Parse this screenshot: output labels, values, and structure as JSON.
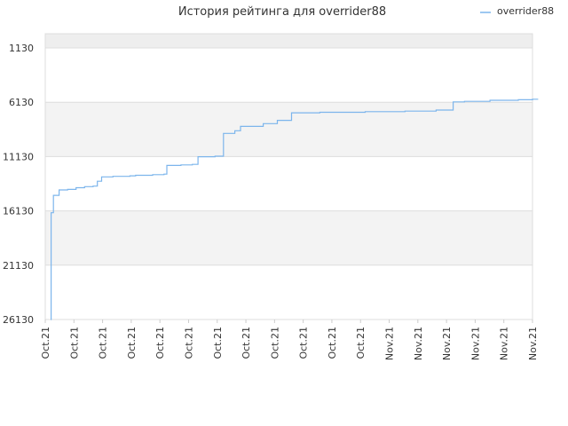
{
  "chart_data": {
    "type": "line",
    "title": "История рейтинга для overrider88",
    "legend": {
      "position": "top-right",
      "label": "overrider88"
    },
    "y_axis": {
      "reversed": true,
      "ylim": [
        1130,
        26130
      ],
      "ticks": [
        "1130",
        "6130",
        "11130",
        "16130",
        "21130",
        "26130"
      ]
    },
    "x_axis": {
      "ticks": [
        "Oct.21",
        "Oct.21",
        "Oct.21",
        "Oct.21",
        "Oct.21",
        "Oct.21",
        "Oct.21",
        "Oct.21",
        "Oct.21",
        "Oct.21",
        "Oct.21",
        "Oct.21",
        "Nov.21",
        "Nov.21",
        "Nov.21",
        "Nov.21",
        "Nov.21",
        "Nov.21"
      ]
    },
    "bands": {
      "colors": [
        "#eeeeee",
        "#ffffff",
        "#f3f3f3"
      ]
    },
    "series": [
      {
        "name": "overrider88",
        "color": "#7cb5ec",
        "points": [
          [
            0.0,
            26130
          ],
          [
            0.02,
            16300
          ],
          [
            0.1,
            14700
          ],
          [
            0.3,
            14200
          ],
          [
            0.6,
            14150
          ],
          [
            0.9,
            14000
          ],
          [
            1.2,
            13900
          ],
          [
            1.5,
            13850
          ],
          [
            1.65,
            13400
          ],
          [
            1.8,
            13000
          ],
          [
            2.2,
            12950
          ],
          [
            2.8,
            12900
          ],
          [
            3.0,
            12850
          ],
          [
            3.6,
            12800
          ],
          [
            4.0,
            12750
          ],
          [
            4.1,
            11950
          ],
          [
            4.6,
            11900
          ],
          [
            5.0,
            11850
          ],
          [
            5.2,
            11150
          ],
          [
            5.8,
            11100
          ],
          [
            6.05,
            11100
          ],
          [
            6.1,
            9000
          ],
          [
            6.5,
            8750
          ],
          [
            6.7,
            8350
          ],
          [
            7.2,
            8350
          ],
          [
            7.5,
            8100
          ],
          [
            8.0,
            7800
          ],
          [
            8.5,
            7100
          ],
          [
            9.0,
            7100
          ],
          [
            9.5,
            7050
          ],
          [
            10.0,
            7050
          ],
          [
            11.0,
            7050
          ],
          [
            11.1,
            7000
          ],
          [
            12.0,
            7000
          ],
          [
            12.5,
            6950
          ],
          [
            13.0,
            6950
          ],
          [
            13.6,
            6850
          ],
          [
            14.1,
            6850
          ],
          [
            14.2,
            6100
          ],
          [
            14.6,
            6050
          ],
          [
            15.5,
            5950
          ],
          [
            16.5,
            5900
          ],
          [
            17.0,
            5850
          ],
          [
            17.2,
            5850
          ]
        ]
      }
    ]
  }
}
